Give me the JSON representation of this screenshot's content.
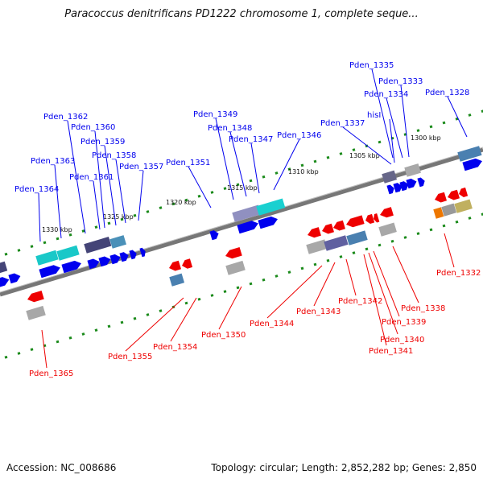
{
  "title": "Paracoccus denitrificans PD1222 chromosome 1, complete seque...",
  "accession": "Accession: NC_008686",
  "summary": "Topology: circular; Length: 2,852,282 bp; Genes: 2,850",
  "colors": {
    "forward": "#0000ee",
    "reverse": "#ee0000",
    "backbone": "#777777",
    "ticks": "#1a8a1a"
  },
  "scale_labels": [
    "1330 kbp",
    "1325 kbp",
    "1320 kbp",
    "1315 kbp",
    "1310 kbp",
    "1305 kbp",
    "1300 kbp"
  ],
  "forward_genes": [
    "Pden_1364",
    "Pden_1363",
    "Pden_1362",
    "Pden_1361",
    "Pden_1360",
    "Pden_1359",
    "Pden_1358",
    "Pden_1357",
    "Pden_1351",
    "Pden_1349",
    "Pden_1348",
    "Pden_1347",
    "Pden_1346",
    "Pden_1337",
    "hisI",
    "Pden_1335",
    "Pden_1334",
    "Pden_1333",
    "Pden_1328"
  ],
  "reverse_genes": [
    "Pden_1365",
    "Pden_1355",
    "Pden_1354",
    "Pden_1350",
    "Pden_1344",
    "Pden_1343",
    "Pden_1342",
    "Pden_1341",
    "Pden_1340",
    "Pden_1339",
    "Pden_1338",
    "Pden_1332"
  ]
}
